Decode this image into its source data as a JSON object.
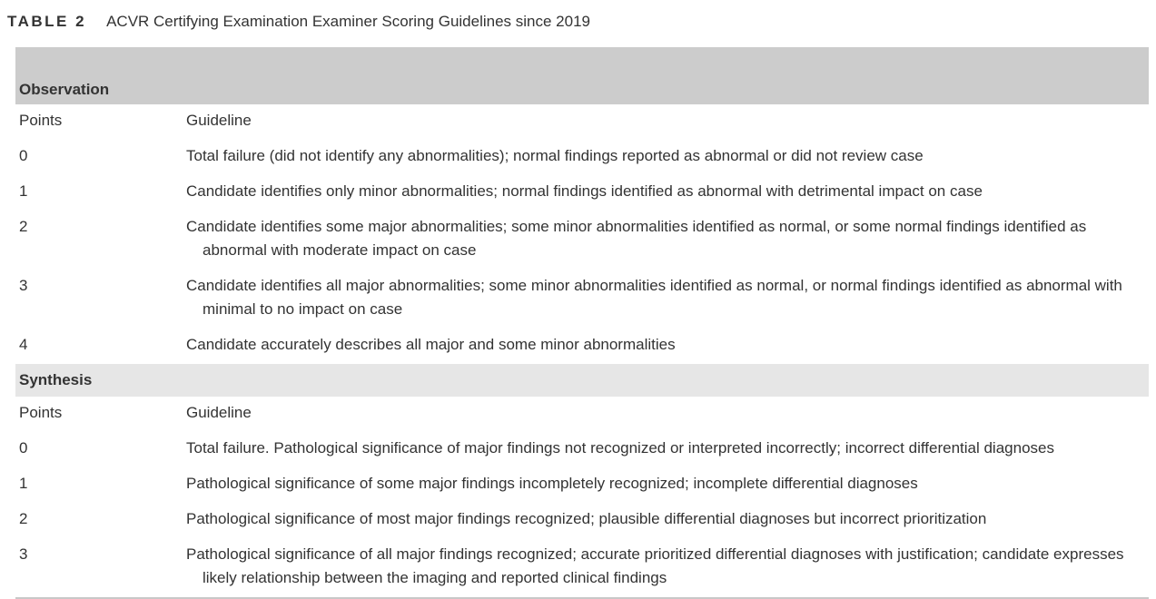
{
  "caption": {
    "label": "TABLE 2",
    "title": "ACVR Certifying Examination Examiner Scoring Guidelines since 2019"
  },
  "sections": [
    {
      "name": "Observation",
      "col_points": "Points",
      "col_guideline": "Guideline",
      "rows": [
        {
          "points": "0",
          "guideline": "Total failure (did not identify any abnormalities); normal findings reported as abnormal or did not review case"
        },
        {
          "points": "1",
          "guideline": "Candidate identifies only minor abnormalities; normal findings identified as abnormal with detrimental impact on case"
        },
        {
          "points": "2",
          "guideline": "Candidate identifies some major abnormalities; some minor abnormalities identified as normal, or some normal findings identified as abnormal with moderate impact on case"
        },
        {
          "points": "3",
          "guideline": "Candidate identifies all major abnormalities; some minor abnormalities identified as normal, or normal findings identified as abnormal with minimal to no impact on case"
        },
        {
          "points": "4",
          "guideline": "Candidate accurately describes all major and some minor abnormalities"
        }
      ]
    },
    {
      "name": "Synthesis",
      "col_points": "Points",
      "col_guideline": "Guideline",
      "rows": [
        {
          "points": "0",
          "guideline": "Total failure. Pathological significance of major findings not recognized or interpreted incorrectly; incorrect differential diagnoses"
        },
        {
          "points": "1",
          "guideline": "Pathological significance of some major findings incompletely recognized; incomplete differential diagnoses"
        },
        {
          "points": "2",
          "guideline": "Pathological significance of most major findings recognized; plausible differential diagnoses but incorrect prioritization"
        },
        {
          "points": "3",
          "guideline": "Pathological significance of all major findings recognized; accurate prioritized differential diagnoses with justification; candidate expresses likely relationship between the imaging and reported clinical findings"
        }
      ]
    }
  ]
}
